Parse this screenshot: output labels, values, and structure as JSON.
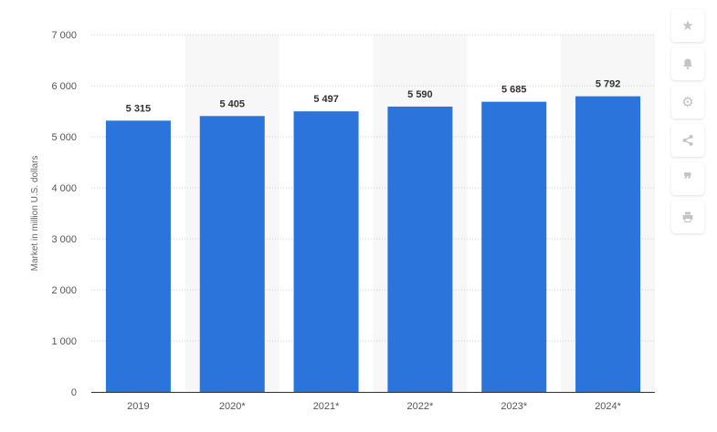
{
  "chart_data": {
    "type": "bar",
    "categories": [
      "2019",
      "2020*",
      "2021*",
      "2022*",
      "2023*",
      "2024*"
    ],
    "values": [
      5315,
      5405,
      5497,
      5590,
      5685,
      5792
    ],
    "value_labels": [
      "5 315",
      "5 405",
      "5 497",
      "5 590",
      "5 685",
      "5 792"
    ],
    "ylabel": "Market in million U.S. dollars",
    "xlabel": "",
    "title": "",
    "ylim": [
      0,
      7000
    ],
    "yticks": [
      0,
      1000,
      2000,
      3000,
      4000,
      5000,
      6000,
      7000
    ],
    "ytick_labels": [
      "0",
      "1 000",
      "2 000",
      "3 000",
      "4 000",
      "5 000",
      "6 000",
      "7 000"
    ],
    "grid": true,
    "legend": "none",
    "bar_color": "#2a74dc",
    "alt_band_color": "#f7f7f7"
  },
  "toolbar": {
    "items": [
      {
        "name": "star-icon",
        "glyph": "★"
      },
      {
        "name": "bell-icon",
        "glyph": ""
      },
      {
        "name": "gear-icon",
        "glyph": "⚙"
      },
      {
        "name": "share-icon",
        "glyph": ""
      },
      {
        "name": "quote-icon",
        "glyph": "❞"
      },
      {
        "name": "print-icon",
        "glyph": ""
      }
    ]
  }
}
